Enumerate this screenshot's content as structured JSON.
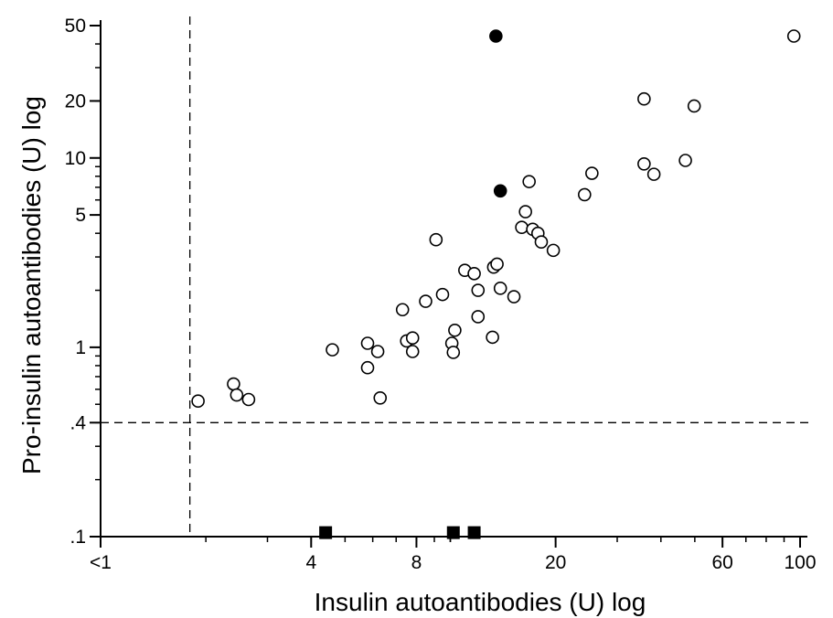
{
  "chart_data": {
    "type": "scatter",
    "title": "",
    "xlabel": "Insulin autoantibodies (U) log",
    "ylabel": "Pro-insulin autoantibodies (U) log",
    "x_scale": "log",
    "y_scale": "log",
    "xlim": [
      1,
      100
    ],
    "ylim": [
      0.1,
      50
    ],
    "x_ticks": [
      {
        "value": 1,
        "label": "<1"
      },
      {
        "value": 4,
        "label": "4"
      },
      {
        "value": 8,
        "label": "8"
      },
      {
        "value": 20,
        "label": "20"
      },
      {
        "value": 60,
        "label": "60"
      },
      {
        "value": 100,
        "label": "100"
      }
    ],
    "y_ticks": [
      {
        "value": 0.1,
        "label": ".1"
      },
      {
        "value": 0.4,
        "label": ".4"
      },
      {
        "value": 1,
        "label": "1"
      },
      {
        "value": 5,
        "label": "5"
      },
      {
        "value": 10,
        "label": "10"
      },
      {
        "value": 20,
        "label": "20"
      },
      {
        "value": 50,
        "label": "50"
      }
    ],
    "threshold_lines": {
      "x": 1.8,
      "y": 0.4
    },
    "grid": false,
    "colors": {
      "open": "#ffffff",
      "filled": "#000000",
      "stroke": "#000000"
    },
    "series": [
      {
        "marker": "open-circle",
        "points": [
          [
            1.9,
            0.52
          ],
          [
            2.4,
            0.64
          ],
          [
            2.45,
            0.56
          ],
          [
            2.65,
            0.53
          ],
          [
            4.6,
            0.97
          ],
          [
            5.8,
            1.05
          ],
          [
            5.8,
            0.78
          ],
          [
            6.2,
            0.95
          ],
          [
            6.3,
            0.54
          ],
          [
            7.3,
            1.58
          ],
          [
            7.5,
            1.08
          ],
          [
            7.8,
            1.12
          ],
          [
            7.8,
            0.95
          ],
          [
            8.5,
            1.75
          ],
          [
            9.1,
            3.7
          ],
          [
            9.5,
            1.9
          ],
          [
            10.1,
            1.05
          ],
          [
            10.2,
            0.94
          ],
          [
            10.3,
            1.23
          ],
          [
            11.0,
            2.55
          ],
          [
            11.7,
            2.45
          ],
          [
            12.0,
            2.0
          ],
          [
            12.0,
            1.45
          ],
          [
            13.2,
            1.13
          ],
          [
            13.3,
            2.65
          ],
          [
            13.6,
            2.75
          ],
          [
            13.9,
            2.05
          ],
          [
            15.2,
            1.85
          ],
          [
            16.0,
            4.3
          ],
          [
            16.4,
            5.2
          ],
          [
            16.8,
            7.5
          ],
          [
            17.2,
            4.2
          ],
          [
            17.8,
            4.0
          ],
          [
            18.2,
            3.6
          ],
          [
            19.7,
            3.25
          ],
          [
            24.2,
            6.4
          ],
          [
            25.4,
            8.3
          ],
          [
            35.8,
            9.3
          ],
          [
            35.8,
            20.5
          ],
          [
            38.2,
            8.2
          ],
          [
            47.0,
            9.7
          ],
          [
            49.8,
            18.8
          ],
          [
            96.0,
            44.0
          ]
        ]
      },
      {
        "marker": "filled-circle",
        "points": [
          [
            13.5,
            44.0
          ],
          [
            13.9,
            6.7
          ]
        ]
      },
      {
        "marker": "filled-square",
        "points": [
          [
            4.4,
            0.105
          ],
          [
            10.2,
            0.105
          ],
          [
            11.7,
            0.105
          ]
        ]
      }
    ]
  }
}
